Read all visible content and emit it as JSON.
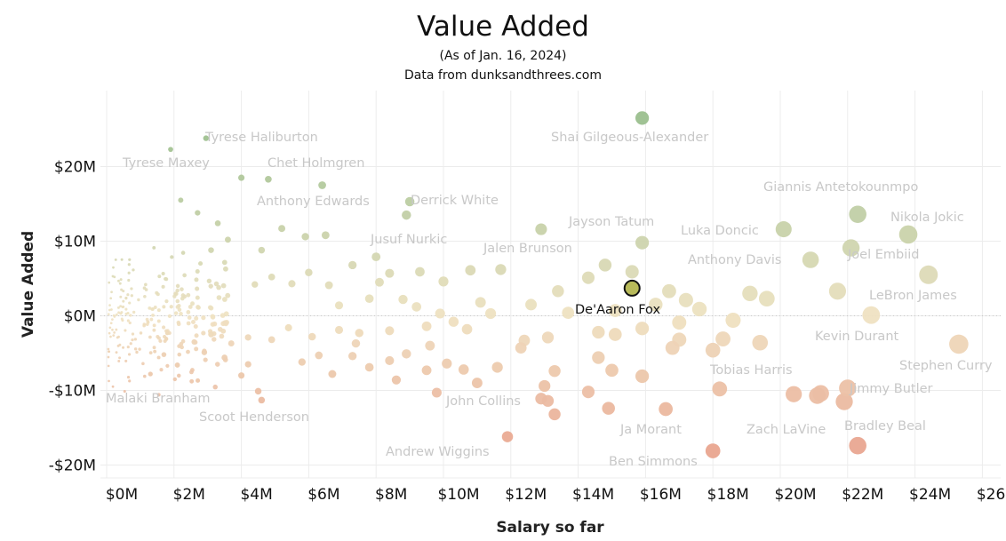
{
  "header": {
    "title": "Value Added",
    "subtitle": "(As of Jan. 16, 2024)",
    "source": "Data from dunksandthrees.com"
  },
  "colors": {
    "positive": "#9bbf8e",
    "neutral": "#efe2c2",
    "negative": "#e9a58f",
    "highlight_fill": "#b8ba5a",
    "highlight_stroke": "#111111",
    "label": "#c8c8c8",
    "grid": "#ececec"
  },
  "chart_data": {
    "type": "scatter",
    "title": "Value Added",
    "xlabel": "Salary so far",
    "ylabel": "Value Added",
    "xlim": [
      -0.5,
      27
    ],
    "ylim": [
      -21,
      27
    ],
    "x_unit": "$M",
    "y_unit": "$M",
    "x_ticks": [
      {
        "v": 0,
        "label": "$0M"
      },
      {
        "v": 2,
        "label": "$2M"
      },
      {
        "v": 4,
        "label": "$4M"
      },
      {
        "v": 6,
        "label": "$6M"
      },
      {
        "v": 8,
        "label": "$8M"
      },
      {
        "v": 10,
        "label": "$10M"
      },
      {
        "v": 12,
        "label": "$12M"
      },
      {
        "v": 14,
        "label": "$14M"
      },
      {
        "v": 16,
        "label": "$16M"
      },
      {
        "v": 18,
        "label": "$18M"
      },
      {
        "v": 20,
        "label": "$20M"
      },
      {
        "v": 22,
        "label": "$22M"
      },
      {
        "v": 24,
        "label": "$24M"
      },
      {
        "v": 26,
        "label": "$26M"
      }
    ],
    "y_ticks": [
      {
        "v": 20,
        "label": "$20M"
      },
      {
        "v": 10,
        "label": "$10M"
      },
      {
        "v": 0,
        "label": "$0M"
      },
      {
        "v": -10,
        "label": "-$10M"
      },
      {
        "v": -20,
        "label": "-$20M"
      }
    ],
    "grid": true,
    "zero_line": "dotted",
    "size_encodes": "salary",
    "labeled_points": [
      {
        "name": "Shai Gilgeous-Alexander",
        "x": 15.9,
        "y": 26.5
      },
      {
        "name": "Tyrese Haliburton",
        "x": 2.95,
        "y": 23.8
      },
      {
        "name": "Tyrese Maxey",
        "x": 1.9,
        "y": 22.3
      },
      {
        "name": "Chet Holmgren",
        "x": 4.8,
        "y": 18.3
      },
      {
        "name": "Anthony Edwards",
        "x": 6.4,
        "y": 17.5
      },
      {
        "name": "Derrick White",
        "x": 9.0,
        "y": 15.3
      },
      {
        "name": "Giannis Antetokounmpo",
        "x": 22.3,
        "y": 13.6
      },
      {
        "name": "Jayson Tatum",
        "x": 15.9,
        "y": 9.8
      },
      {
        "name": "Luka Doncic",
        "x": 20.1,
        "y": 11.6
      },
      {
        "name": "Nikola Jokic",
        "x": 23.8,
        "y": 10.9
      },
      {
        "name": "Jusuf Nurkic",
        "x": 8.0,
        "y": 7.9
      },
      {
        "name": "Jalen Brunson",
        "x": 12.9,
        "y": 11.6
      },
      {
        "name": "Joel Embiid",
        "x": 22.1,
        "y": 9.1
      },
      {
        "name": "Anthony Davis",
        "x": 20.9,
        "y": 7.5
      },
      {
        "name": "LeBron James",
        "x": 24.4,
        "y": 5.5
      },
      {
        "name": "De'Aaron Fox",
        "x": 15.6,
        "y": 3.7
      },
      {
        "name": "Kevin Durant",
        "x": 22.7,
        "y": 0.1
      },
      {
        "name": "Stephen Curry",
        "x": 25.3,
        "y": -3.8
      },
      {
        "name": "Tobias Harris",
        "x": 18.0,
        "y": -4.6
      },
      {
        "name": "Malaki Branham",
        "x": 1.3,
        "y": -7.8
      },
      {
        "name": "Scoot Henderson",
        "x": 4.6,
        "y": -11.3
      },
      {
        "name": "John Collins",
        "x": 13.1,
        "y": -11.4
      },
      {
        "name": "Jimmy Butler",
        "x": 22.0,
        "y": -9.7
      },
      {
        "name": "Ja Morant",
        "x": 16.6,
        "y": -12.5
      },
      {
        "name": "Zach LaVine",
        "x": 21.1,
        "y": -10.7
      },
      {
        "name": "Bradley Beal",
        "x": 22.3,
        "y": -17.4
      },
      {
        "name": "Andrew Wiggins",
        "x": 11.9,
        "y": -16.2
      },
      {
        "name": "Ben Simmons",
        "x": 18.0,
        "y": -18.1
      }
    ],
    "other_points": [
      [
        4.0,
        18.5
      ],
      [
        2.2,
        15.5
      ],
      [
        2.7,
        13.8
      ],
      [
        3.3,
        12.4
      ],
      [
        4.6,
        8.8
      ],
      [
        5.2,
        11.7
      ],
      [
        5.9,
        10.6
      ],
      [
        6.5,
        10.8
      ],
      [
        8.9,
        13.5
      ],
      [
        3.6,
        10.2
      ],
      [
        3.1,
        8.8
      ],
      [
        4.4,
        4.2
      ],
      [
        4.9,
        5.2
      ],
      [
        5.5,
        4.3
      ],
      [
        6.0,
        5.8
      ],
      [
        6.6,
        4.1
      ],
      [
        7.3,
        6.8
      ],
      [
        8.4,
        5.7
      ],
      [
        9.3,
        5.9
      ],
      [
        10.0,
        4.6
      ],
      [
        10.8,
        6.1
      ],
      [
        11.7,
        6.2
      ],
      [
        13.4,
        3.3
      ],
      [
        14.8,
        6.8
      ],
      [
        15.6,
        5.9
      ],
      [
        16.7,
        3.3
      ],
      [
        17.2,
        2.1
      ],
      [
        19.1,
        3.0
      ],
      [
        19.6,
        2.3
      ],
      [
        21.7,
        3.3
      ],
      [
        14.3,
        5.1
      ],
      [
        8.1,
        4.5
      ],
      [
        7.8,
        2.3
      ],
      [
        6.9,
        1.4
      ],
      [
        8.8,
        2.2
      ],
      [
        9.2,
        1.2
      ],
      [
        9.9,
        0.3
      ],
      [
        11.1,
        1.8
      ],
      [
        11.4,
        0.3
      ],
      [
        12.6,
        1.5
      ],
      [
        13.7,
        0.4
      ],
      [
        15.1,
        0.7
      ],
      [
        16.3,
        1.5
      ],
      [
        17.6,
        0.9
      ],
      [
        18.6,
        -0.6
      ],
      [
        17.0,
        -0.9
      ],
      [
        15.9,
        -1.7
      ],
      [
        15.1,
        -2.5
      ],
      [
        14.6,
        -2.2
      ],
      [
        13.1,
        -2.9
      ],
      [
        12.4,
        -3.3
      ],
      [
        10.7,
        -1.8
      ],
      [
        10.3,
        -0.8
      ],
      [
        9.5,
        -1.4
      ],
      [
        8.4,
        -2.0
      ],
      [
        7.5,
        -2.3
      ],
      [
        6.9,
        -1.9
      ],
      [
        6.1,
        -2.8
      ],
      [
        5.4,
        -1.6
      ],
      [
        4.9,
        -3.2
      ],
      [
        4.2,
        -2.9
      ],
      [
        3.7,
        -3.7
      ],
      [
        3.1,
        -2.5
      ],
      [
        2.6,
        -3.5
      ],
      [
        5.8,
        -6.2
      ],
      [
        6.3,
        -5.3
      ],
      [
        6.7,
        -7.8
      ],
      [
        7.3,
        -5.4
      ],
      [
        7.8,
        -6.9
      ],
      [
        8.4,
        -6.0
      ],
      [
        8.9,
        -5.1
      ],
      [
        9.5,
        -7.3
      ],
      [
        10.1,
        -6.4
      ],
      [
        10.6,
        -7.2
      ],
      [
        11.6,
        -6.9
      ],
      [
        12.3,
        -4.3
      ],
      [
        13.0,
        -9.4
      ],
      [
        13.3,
        -7.4
      ],
      [
        14.3,
        -10.2
      ],
      [
        14.6,
        -5.6
      ],
      [
        15.0,
        -7.3
      ],
      [
        15.9,
        -8.1
      ],
      [
        17.0,
        -3.2
      ],
      [
        18.3,
        -3.1
      ],
      [
        19.4,
        -3.6
      ],
      [
        18.2,
        -9.8
      ],
      [
        16.8,
        -4.3
      ],
      [
        12.9,
        -11.1
      ],
      [
        11.0,
        -9.0
      ],
      [
        9.8,
        -10.3
      ],
      [
        8.6,
        -8.6
      ],
      [
        9.6,
        -4.0
      ],
      [
        7.4,
        -3.7
      ],
      [
        2.9,
        -4.9
      ],
      [
        3.5,
        -5.6
      ],
      [
        4.2,
        -6.5
      ],
      [
        4.5,
        -10.1
      ],
      [
        4.0,
        -8.0
      ],
      [
        2.1,
        -6.6
      ],
      [
        1.7,
        -5.2
      ],
      [
        20.4,
        -10.5
      ],
      [
        21.2,
        -10.4
      ],
      [
        21.9,
        -11.5
      ],
      [
        14.9,
        -12.4
      ],
      [
        13.3,
        -13.2
      ]
    ]
  }
}
